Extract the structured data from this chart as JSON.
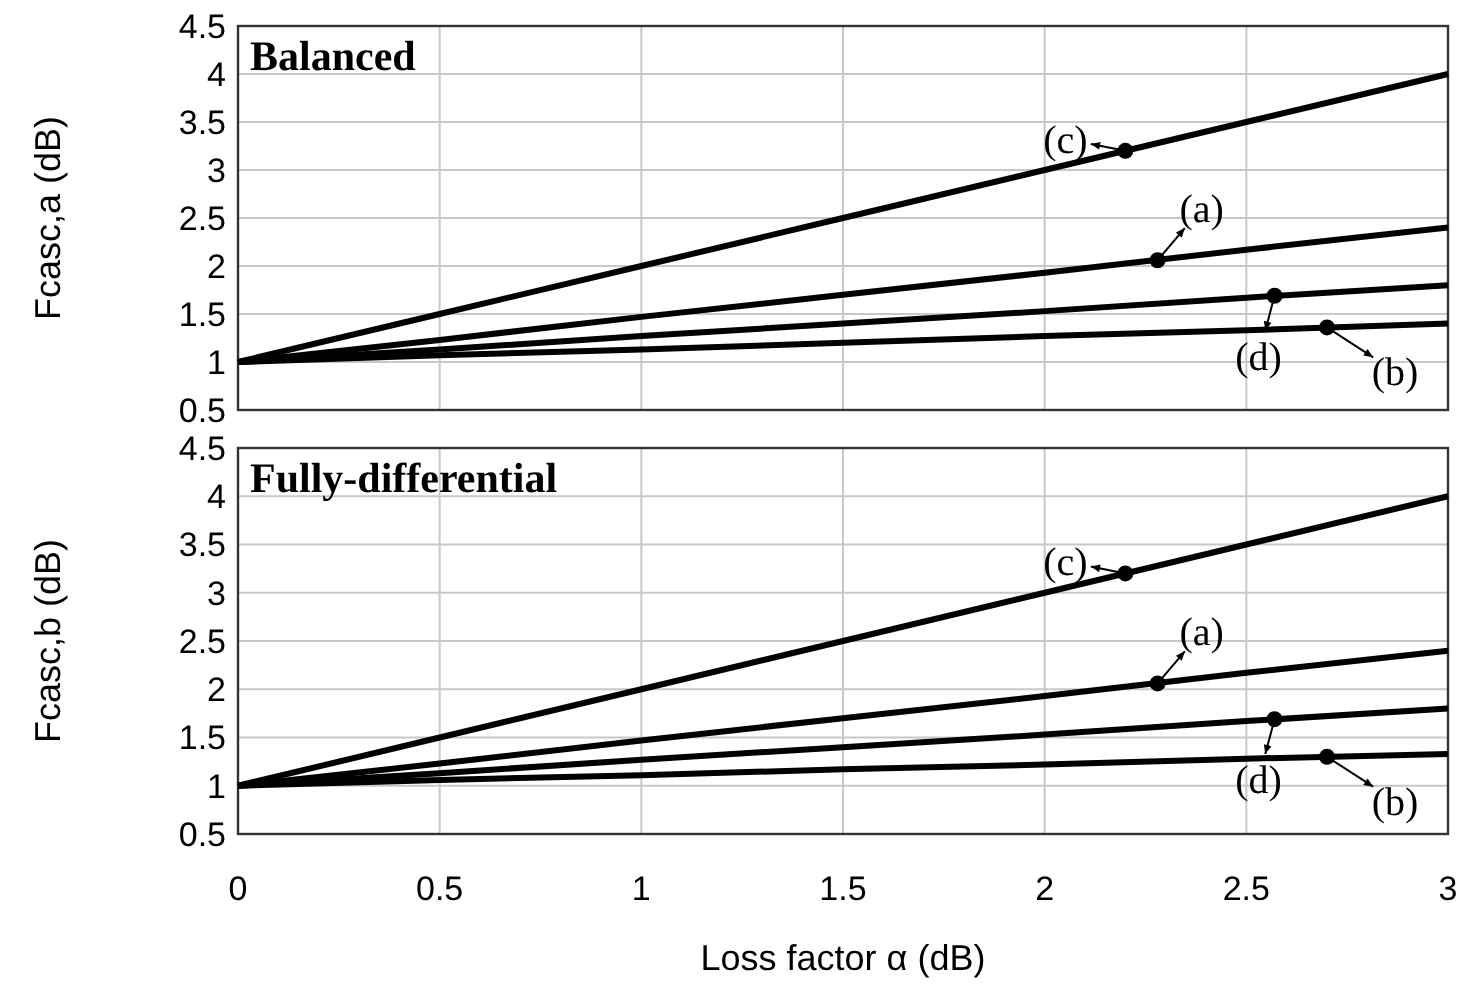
{
  "chart_data": [
    {
      "type": "line",
      "title": "Balanced",
      "ylabel": "Fcasc,a (dB)",
      "x": [
        0,
        0.5,
        1,
        1.5,
        2,
        2.5,
        3
      ],
      "xlim": [
        0,
        3
      ],
      "ylim": [
        0.5,
        4.5
      ],
      "xticks": [
        0,
        0.5,
        1,
        1.5,
        2,
        2.5,
        3
      ],
      "yticks": [
        0.5,
        1,
        1.5,
        2,
        2.5,
        3,
        3.5,
        4,
        4.5
      ],
      "grid": true,
      "tick_labels": "y",
      "marker": "none",
      "line_style": "solid",
      "series": [
        {
          "color": "#000000",
          "values": [
            1,
            1.5,
            2,
            2.5,
            3,
            3.5,
            4
          ]
        },
        {
          "color": "#000000",
          "values": [
            1,
            1.23,
            1.47,
            1.7,
            1.93,
            2.17,
            2.4
          ]
        },
        {
          "color": "#000000",
          "values": [
            1,
            1.13,
            1.27,
            1.4,
            1.53,
            1.67,
            1.8
          ]
        },
        {
          "color": "#000000",
          "values": [
            1,
            1.07,
            1.13,
            1.2,
            1.27,
            1.33,
            1.4
          ]
        }
      ],
      "annotations": [
        {
          "text": "(c)",
          "x": 2.2,
          "y": 3.2
        },
        {
          "text": "(a)",
          "x": 2.28,
          "y": 2.06
        },
        {
          "text": "(d)",
          "x": 2.57,
          "y": 1.69
        },
        {
          "text": "(b)",
          "x": 2.7,
          "y": 1.36
        }
      ]
    },
    {
      "type": "line",
      "title": "Fully-differential",
      "xlabel": "Loss factor  α (dB)",
      "ylabel": "Fcasc,b (dB)",
      "x": [
        0,
        0.5,
        1,
        1.5,
        2,
        2.5,
        3
      ],
      "xlim": [
        0,
        3
      ],
      "ylim": [
        0.5,
        4.5
      ],
      "xticks": [
        0,
        0.5,
        1,
        1.5,
        2,
        2.5,
        3
      ],
      "yticks": [
        0.5,
        1,
        1.5,
        2,
        2.5,
        3,
        3.5,
        4,
        4.5
      ],
      "grid": true,
      "marker": "none",
      "line_style": "solid",
      "series": [
        {
          "color": "#000000",
          "values": [
            1,
            1.5,
            2,
            2.5,
            3,
            3.5,
            4
          ]
        },
        {
          "color": "#000000",
          "values": [
            1,
            1.23,
            1.47,
            1.7,
            1.93,
            2.17,
            2.4
          ]
        },
        {
          "color": "#000000",
          "values": [
            1,
            1.13,
            1.27,
            1.4,
            1.53,
            1.67,
            1.8
          ]
        },
        {
          "color": "#000000",
          "values": [
            1,
            1.06,
            1.11,
            1.17,
            1.22,
            1.28,
            1.33
          ]
        }
      ],
      "annotations": [
        {
          "text": "(c)",
          "x": 2.2,
          "y": 3.2
        },
        {
          "text": "(a)",
          "x": 2.28,
          "y": 2.06
        },
        {
          "text": "(d)",
          "x": 2.57,
          "y": 1.69
        },
        {
          "text": "(b)",
          "x": 2.7,
          "y": 1.3
        }
      ]
    }
  ]
}
